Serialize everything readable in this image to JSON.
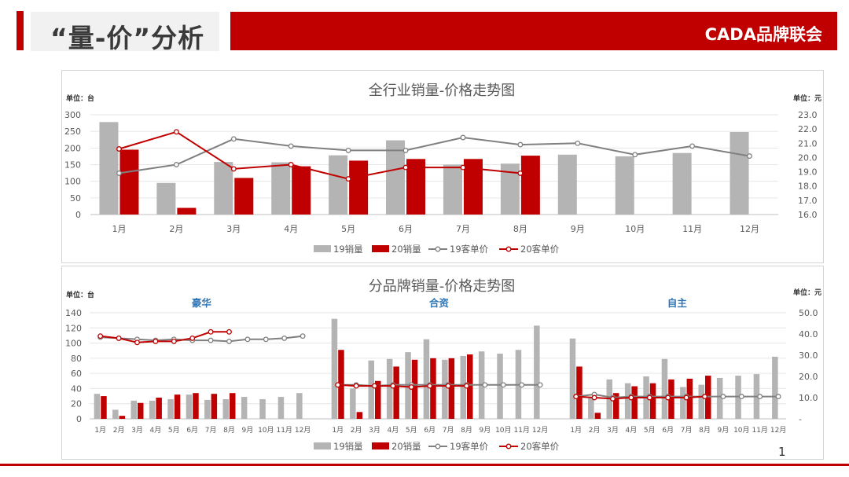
{
  "header": {
    "title": "“量-价”分析",
    "brand": "CADA品牌联会"
  },
  "footer": {
    "page_number": "1"
  },
  "colors": {
    "accent": "#c00000",
    "bar19": "#b4b4b4",
    "bar20": "#c00000",
    "line19": "#808080",
    "line20": "#c00000"
  },
  "chart_data": [
    {
      "type": "bar",
      "title": "全行业销量-价格走势图",
      "left_unit": "单位：台",
      "right_unit": "单位：元",
      "categories": [
        "1月",
        "2月",
        "3月",
        "4月",
        "5月",
        "6月",
        "7月",
        "8月",
        "9月",
        "10月",
        "11月",
        "12月"
      ],
      "ylim": [
        0,
        300
      ],
      "y_ticks": [
        "0",
        "50",
        "100",
        "150",
        "200",
        "250",
        "300"
      ],
      "y2lim": [
        16.0,
        23.0
      ],
      "y2_ticks": [
        "16.0",
        "17.0",
        "18.0",
        "19.0",
        "20.0",
        "21.0",
        "22.0",
        "23.0"
      ],
      "grid": true,
      "legend_position": "bottom",
      "series": [
        {
          "name": "19销量",
          "kind": "bar",
          "axis": "left",
          "values": [
            278,
            95,
            158,
            157,
            178,
            223,
            150,
            153,
            180,
            175,
            185,
            248
          ]
        },
        {
          "name": "20销量",
          "kind": "bar",
          "axis": "left",
          "values": [
            195,
            20,
            110,
            145,
            162,
            167,
            167,
            177,
            null,
            null,
            null,
            null
          ]
        },
        {
          "name": "19客单价",
          "kind": "line",
          "axis": "right",
          "values": [
            18.9,
            19.5,
            21.3,
            20.8,
            20.5,
            20.5,
            21.4,
            20.9,
            21.0,
            20.2,
            20.8,
            20.1
          ]
        },
        {
          "name": "20客单价",
          "kind": "line",
          "axis": "right",
          "values": [
            20.6,
            21.8,
            19.2,
            19.5,
            18.5,
            19.3,
            19.3,
            18.9,
            null,
            null,
            null,
            null
          ]
        }
      ]
    },
    {
      "type": "bar",
      "title": "分品牌销量-价格走势图",
      "left_unit": "单位：台",
      "right_unit": "单位：元",
      "ylim": [
        0,
        140
      ],
      "y_ticks": [
        "0",
        "20",
        "40",
        "60",
        "80",
        "100",
        "120",
        "140"
      ],
      "y2lim": [
        0,
        50
      ],
      "y2_ticks": [
        "-",
        "10.0",
        "20.0",
        "30.0",
        "40.0",
        "50.0"
      ],
      "grid": true,
      "legend_position": "bottom",
      "groups": [
        {
          "name": "豪华",
          "categories": [
            "1月",
            "2月",
            "3月",
            "4月",
            "5月",
            "6月",
            "7月",
            "8月",
            "9月",
            "10月",
            "11月",
            "12月"
          ],
          "series": [
            {
              "name": "19销量",
              "values": [
                33,
                12,
                24,
                24,
                26,
                32,
                25,
                26,
                29,
                26,
                29,
                34
              ]
            },
            {
              "name": "20销量",
              "values": [
                30,
                4,
                21,
                28,
                32,
                34,
                33,
                34,
                null,
                null,
                null,
                null
              ]
            },
            {
              "name": "19客单价",
              "values": [
                38.5,
                38.0,
                37.5,
                37.0,
                37.5,
                37.0,
                37.0,
                36.5,
                37.5,
                37.5,
                38.0,
                39.0
              ]
            },
            {
              "name": "20客单价",
              "values": [
                39.0,
                38.0,
                36.0,
                36.5,
                36.5,
                38.0,
                41.0,
                41.0,
                null,
                null,
                null,
                null
              ]
            }
          ]
        },
        {
          "name": "合资",
          "categories": [
            "1月",
            "2月",
            "3月",
            "4月",
            "5月",
            "6月",
            "7月",
            "8月",
            "9月",
            "10月",
            "11月",
            "12月"
          ],
          "series": [
            {
              "name": "19销量",
              "values": [
                132,
                40,
                77,
                79,
                88,
                105,
                78,
                83,
                89,
                86,
                91,
                123
              ]
            },
            {
              "name": "20销量",
              "values": [
                91,
                9,
                50,
                69,
                78,
                80,
                80,
                85,
                null,
                null,
                null,
                null
              ]
            },
            {
              "name": "19客单价",
              "values": [
                16.0,
                16.0,
                15.5,
                16.0,
                16.0,
                16.0,
                16.0,
                16.0,
                16.0,
                16.0,
                16.0,
                16.0
              ]
            },
            {
              "name": "20客单价",
              "values": [
                16.0,
                15.5,
                15.5,
                15.5,
                15.0,
                15.5,
                15.5,
                15.5,
                null,
                null,
                null,
                null
              ]
            }
          ]
        },
        {
          "name": "自主",
          "categories": [
            "1月",
            "2月",
            "3月",
            "4月",
            "5月",
            "6月",
            "7月",
            "8月",
            "9月",
            "10月",
            "11月",
            "12月"
          ],
          "series": [
            {
              "name": "19销量",
              "values": [
                106,
                29,
                52,
                47,
                56,
                79,
                42,
                45,
                54,
                57,
                59,
                82
              ]
            },
            {
              "name": "20销量",
              "values": [
                69,
                8,
                34,
                43,
                47,
                52,
                53,
                57,
                null,
                null,
                null,
                null
              ]
            },
            {
              "name": "19客单价",
              "values": [
                10.5,
                11.5,
                10.0,
                10.5,
                10.5,
                10.5,
                10.5,
                10.5,
                10.5,
                10.5,
                10.5,
                10.5
              ]
            },
            {
              "name": "20客单价",
              "values": [
                10.5,
                10.0,
                9.5,
                10.0,
                10.0,
                10.0,
                10.0,
                10.5,
                null,
                null,
                null,
                null
              ]
            }
          ]
        }
      ]
    }
  ]
}
